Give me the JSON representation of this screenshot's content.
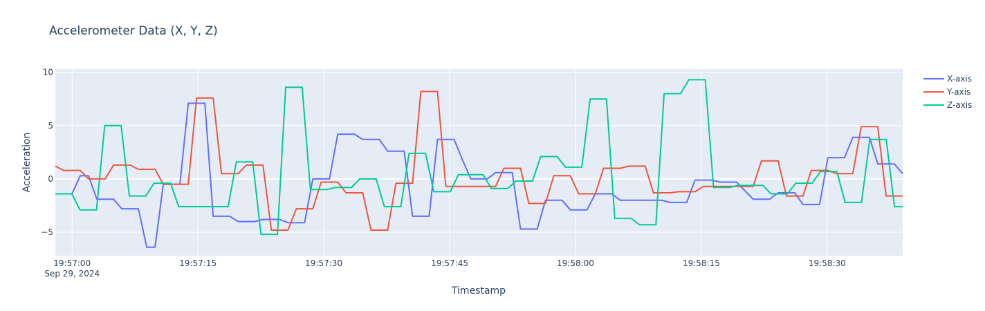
{
  "chart_data": {
    "type": "line",
    "title": "Accelerometer Data (X, Y, Z)",
    "xlabel": "Timestamp",
    "ylabel": "Acceleration",
    "x_start": "2024-09-29 19:56:58",
    "x_end": "2024-09-29 19:58:39",
    "xlim": [
      "2024-09-29 19:56:58",
      "2024-09-29 19:58:39"
    ],
    "ylim": [
      -7.2,
      10.3
    ],
    "x_ticks": [
      {
        "label": "19:57:00",
        "sublabel": "Sep 29, 2024"
      },
      {
        "label": "19:57:15",
        "sublabel": ""
      },
      {
        "label": "19:57:30",
        "sublabel": ""
      },
      {
        "label": "19:57:45",
        "sublabel": ""
      },
      {
        "label": "19:58:00",
        "sublabel": ""
      },
      {
        "label": "19:58:15",
        "sublabel": ""
      },
      {
        "label": "19:58:30",
        "sublabel": ""
      }
    ],
    "y_ticks": [
      {
        "value": 10,
        "label": "10"
      },
      {
        "value": 5,
        "label": "5"
      },
      {
        "value": 0,
        "label": "0"
      },
      {
        "value": -5,
        "label": "−5"
      }
    ],
    "grid": true,
    "legend_position": "top-right",
    "series": [
      {
        "name": "X-axis",
        "color": "#636efa",
        "values": [
          -1.4,
          -1.4,
          -1.4,
          0.3,
          0.3,
          -1.9,
          -1.9,
          -1.9,
          -2.8,
          -2.8,
          -2.8,
          -6.4,
          -6.4,
          -0.5,
          -0.5,
          -0.5,
          7.1,
          7.1,
          7.1,
          -3.5,
          -3.5,
          -3.5,
          -4.0,
          -4.0,
          -4.0,
          -3.8,
          -3.8,
          -3.8,
          -4.1,
          -4.1,
          -4.1,
          0.0,
          0.0,
          0.0,
          4.2,
          4.2,
          4.2,
          3.7,
          3.7,
          3.7,
          2.6,
          2.6,
          2.6,
          -3.5,
          -3.5,
          -3.5,
          3.7,
          3.7,
          3.7,
          1.8,
          0.0,
          0.0,
          0.0,
          0.6,
          0.6,
          0.6,
          -4.7,
          -4.7,
          -4.7,
          -2.0,
          -2.0,
          -2.0,
          -2.9,
          -2.9,
          -2.9,
          -1.4,
          -1.4,
          -1.4,
          -2.0,
          -2.0,
          -2.0,
          -2.0,
          -2.0,
          -2.0,
          -2.2,
          -2.2,
          -2.2,
          -0.1,
          -0.1,
          -0.1,
          -0.3,
          -0.3,
          -0.3,
          -1.1,
          -1.9,
          -1.9,
          -1.9,
          -1.3,
          -1.3,
          -1.3,
          -2.4,
          -2.4,
          -2.4,
          2.0,
          2.0,
          2.0,
          3.9,
          3.9,
          3.9,
          1.4,
          1.4,
          1.4,
          0.5
        ]
      },
      {
        "name": "Y-axis",
        "color": "#ef553b",
        "values": [
          1.2,
          0.8,
          0.8,
          0.8,
          0.0,
          0.0,
          0.0,
          1.3,
          1.3,
          1.3,
          0.9,
          0.9,
          0.9,
          -0.5,
          -0.5,
          -0.5,
          -0.5,
          7.6,
          7.6,
          7.6,
          0.5,
          0.5,
          0.5,
          1.3,
          1.3,
          1.3,
          -4.8,
          -4.8,
          -4.8,
          -2.8,
          -2.8,
          -2.8,
          -0.3,
          -0.3,
          -0.3,
          -1.3,
          -1.3,
          -1.3,
          -4.8,
          -4.8,
          -4.8,
          -0.4,
          -0.4,
          -0.4,
          8.2,
          8.2,
          8.2,
          -0.7,
          -0.7,
          -0.7,
          -0.7,
          -0.7,
          -0.7,
          -0.7,
          1.0,
          1.0,
          1.0,
          -2.3,
          -2.3,
          -2.3,
          0.3,
          0.3,
          0.3,
          -1.4,
          -1.4,
          -1.4,
          1.0,
          1.0,
          1.0,
          1.2,
          1.2,
          1.2,
          -1.3,
          -1.3,
          -1.3,
          -1.2,
          -1.2,
          -1.2,
          -0.7,
          -0.7,
          -0.7,
          -0.7,
          -0.7,
          -0.7,
          -0.7,
          1.7,
          1.7,
          1.7,
          -1.6,
          -1.6,
          -1.6,
          0.8,
          0.8,
          0.8,
          0.5,
          0.5,
          0.5,
          4.9,
          4.9,
          4.9,
          -1.6,
          -1.6,
          -1.6
        ]
      },
      {
        "name": "Z-axis",
        "color": "#00cc96",
        "values": [
          -1.4,
          -1.4,
          -1.4,
          -2.9,
          -2.9,
          -2.9,
          5.0,
          5.0,
          5.0,
          -1.6,
          -1.6,
          -1.6,
          -0.4,
          -0.4,
          -0.4,
          -2.6,
          -2.6,
          -2.6,
          -2.6,
          -2.6,
          -2.6,
          -2.6,
          1.6,
          1.6,
          1.6,
          -5.2,
          -5.2,
          -5.2,
          8.6,
          8.6,
          8.6,
          -1.0,
          -1.0,
          -1.0,
          -0.8,
          -0.8,
          -0.8,
          0.0,
          0.0,
          0.0,
          -2.6,
          -2.6,
          -2.6,
          2.4,
          2.4,
          2.4,
          -1.2,
          -1.2,
          -1.2,
          0.4,
          0.4,
          0.4,
          0.4,
          -0.9,
          -0.9,
          -0.9,
          -0.2,
          -0.2,
          -0.2,
          2.1,
          2.1,
          2.1,
          1.1,
          1.1,
          1.1,
          7.5,
          7.5,
          7.5,
          -3.7,
          -3.7,
          -3.7,
          -4.3,
          -4.3,
          -4.3,
          8.0,
          8.0,
          8.0,
          9.3,
          9.3,
          9.3,
          -0.8,
          -0.8,
          -0.8,
          -0.6,
          -0.6,
          -0.6,
          -0.6,
          -1.4,
          -1.4,
          -1.4,
          -0.4,
          -0.4,
          -0.4,
          0.7,
          0.7,
          0.7,
          -2.2,
          -2.2,
          -2.2,
          3.7,
          3.7,
          3.7,
          -2.6,
          -2.6
        ]
      }
    ]
  }
}
